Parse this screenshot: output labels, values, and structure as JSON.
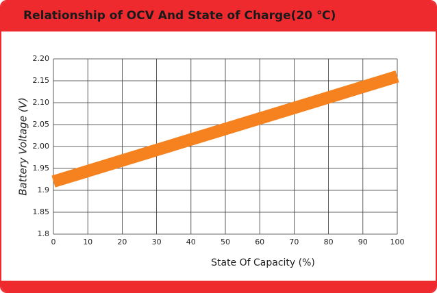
{
  "chart_data": {
    "type": "line",
    "title": "Relationship of OCV And State of Charge(20 ℃)",
    "x_label": "State Of Capacity (%)",
    "y_label": "Battery Voltage (V)",
    "x": [
      0,
      100
    ],
    "values": [
      1.92,
      2.16
    ],
    "color": "#f5821f",
    "xlim": [
      0,
      100
    ],
    "xticks": [
      0,
      10,
      20,
      30,
      40,
      50,
      60,
      70,
      80,
      90,
      100
    ],
    "ylim": [
      1.8,
      2.2
    ],
    "yticks": [
      1.8,
      1.85,
      1.9,
      1.95,
      {
        "value": 2.0,
        "label": "2.00"
      },
      2.05,
      {
        "value": 2.1,
        "label": "2.10"
      },
      2.15,
      {
        "value": 2.2,
        "label": "2.20"
      }
    ],
    "grid": true
  }
}
